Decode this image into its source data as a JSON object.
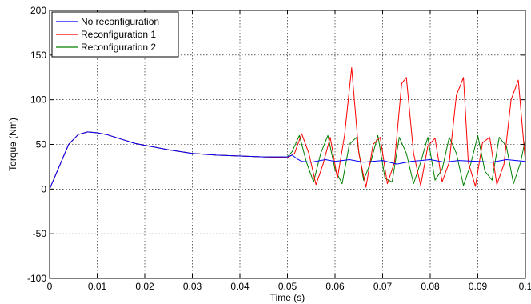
{
  "chart_data": {
    "type": "line",
    "title": "",
    "xlabel": "Time (s)",
    "ylabel": "Torque (Nm)",
    "xlim": [
      0,
      0.1
    ],
    "ylim": [
      -100,
      200
    ],
    "grid": true,
    "legend_position": "top-left",
    "x_ticks": [
      0,
      0.01,
      0.02,
      0.03,
      0.04,
      0.05,
      0.06,
      0.07,
      0.08,
      0.09,
      0.1
    ],
    "x_tick_labels": [
      "0",
      "0.01",
      "0.02",
      "0.03",
      "0.04",
      "0.05",
      "0.06",
      "0.07",
      "0.08",
      "0.09",
      "0.1"
    ],
    "y_ticks": [
      -100,
      -50,
      0,
      50,
      100,
      150,
      200
    ],
    "y_tick_labels": [
      "-100",
      "-50",
      "0",
      "50",
      "100",
      "150",
      "200"
    ],
    "series": [
      {
        "name": "No reconfiguration",
        "color": "#0000ff",
        "x": [
          0,
          0.002,
          0.004,
          0.006,
          0.008,
          0.01,
          0.012,
          0.015,
          0.018,
          0.02,
          0.025,
          0.03,
          0.035,
          0.04,
          0.045,
          0.05,
          0.051,
          0.052,
          0.053,
          0.055,
          0.058,
          0.06,
          0.063,
          0.066,
          0.07,
          0.073,
          0.076,
          0.08,
          0.083,
          0.086,
          0.09,
          0.093,
          0.096,
          0.1
        ],
        "y": [
          0,
          25,
          50,
          61,
          64,
          63,
          61,
          56,
          51,
          49,
          44,
          40,
          38,
          37,
          36,
          36,
          38,
          34,
          31,
          30,
          33,
          31,
          33,
          30,
          32,
          28,
          31,
          33,
          30,
          32,
          31,
          30,
          33,
          31
        ]
      },
      {
        "name": "Reconfiguration 1",
        "color": "#ff0000",
        "x": [
          0,
          0.002,
          0.004,
          0.006,
          0.008,
          0.01,
          0.012,
          0.015,
          0.018,
          0.02,
          0.025,
          0.03,
          0.035,
          0.04,
          0.045,
          0.05,
          0.0515,
          0.053,
          0.0545,
          0.056,
          0.0575,
          0.059,
          0.0605,
          0.062,
          0.0635,
          0.065,
          0.0665,
          0.068,
          0.0695,
          0.071,
          0.0725,
          0.074,
          0.075,
          0.0765,
          0.078,
          0.0795,
          0.081,
          0.0825,
          0.084,
          0.0855,
          0.087,
          0.088,
          0.0895,
          0.091,
          0.0925,
          0.094,
          0.0955,
          0.097,
          0.0985,
          0.1
        ],
        "y": [
          0,
          25,
          50,
          61,
          64,
          63,
          61,
          56,
          51,
          49,
          44,
          40,
          38,
          37,
          36,
          35,
          40,
          62,
          40,
          5,
          28,
          58,
          12,
          60,
          136,
          40,
          2,
          50,
          58,
          6,
          30,
          118,
          125,
          40,
          4,
          48,
          57,
          8,
          30,
          105,
          125,
          30,
          3,
          52,
          58,
          5,
          28,
          100,
          122,
          30
        ]
      },
      {
        "name": "Reconfiguration 2",
        "color": "#008000",
        "x": [
          0,
          0.002,
          0.004,
          0.006,
          0.008,
          0.01,
          0.012,
          0.015,
          0.018,
          0.02,
          0.025,
          0.03,
          0.035,
          0.04,
          0.045,
          0.05,
          0.051,
          0.0525,
          0.054,
          0.0555,
          0.057,
          0.0585,
          0.06,
          0.0615,
          0.063,
          0.0645,
          0.066,
          0.0675,
          0.069,
          0.0705,
          0.072,
          0.0735,
          0.075,
          0.0765,
          0.078,
          0.0795,
          0.081,
          0.0825,
          0.084,
          0.0855,
          0.087,
          0.0885,
          0.09,
          0.0915,
          0.093,
          0.0945,
          0.096,
          0.0975,
          0.099,
          0.1
        ],
        "y": [
          0,
          25,
          50,
          61,
          64,
          63,
          61,
          56,
          51,
          49,
          44,
          40,
          38,
          37,
          36,
          36,
          42,
          60,
          30,
          8,
          40,
          60,
          22,
          6,
          50,
          58,
          10,
          30,
          60,
          12,
          8,
          58,
          40,
          6,
          30,
          58,
          10,
          22,
          58,
          40,
          4,
          28,
          60,
          20,
          10,
          58,
          48,
          6,
          30,
          56
        ]
      }
    ]
  }
}
